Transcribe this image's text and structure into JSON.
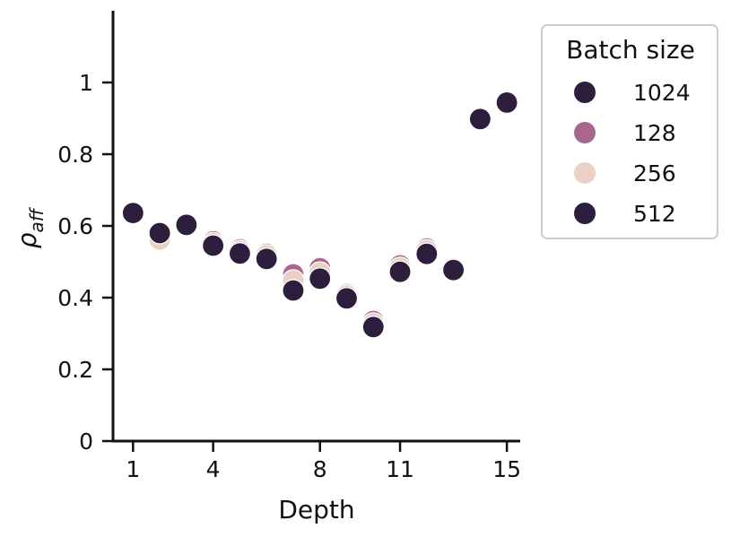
{
  "chart_data": {
    "type": "scatter",
    "xlabel": "Depth",
    "ylabel_base": "ρ",
    "ylabel_sub": "aff",
    "xlim": [
      0.25,
      15.5
    ],
    "ylim": [
      0,
      1.2
    ],
    "xticks": [
      1,
      4,
      8,
      11,
      15
    ],
    "yticks": [
      0,
      0.2,
      0.4,
      0.6,
      0.8,
      1
    ],
    "ytick_labels": [
      "0",
      "0.2",
      "0.4",
      "0.6",
      "0.8",
      "1"
    ],
    "legend": {
      "title": "Batch size",
      "placement": "top-right outside",
      "entries": [
        "1024",
        "128",
        "256",
        "512"
      ]
    },
    "series": [
      {
        "name": "1024",
        "color": "#2d1e3e",
        "x": [
          1,
          2,
          3,
          4,
          5,
          6,
          7,
          8,
          9,
          10,
          11,
          12,
          13,
          14,
          15
        ],
        "y": [
          0.635,
          0.575,
          0.602,
          0.548,
          0.527,
          0.513,
          0.43,
          0.46,
          0.402,
          0.322,
          0.476,
          0.527,
          0.48,
          0.897,
          0.943
        ]
      },
      {
        "name": "128",
        "color": "#a7678f",
        "x": [
          1,
          2,
          3,
          4,
          5,
          6,
          7,
          8,
          9,
          10,
          11,
          12,
          13,
          14,
          15
        ],
        "y": [
          0.633,
          0.568,
          0.6,
          0.557,
          0.535,
          0.522,
          0.465,
          0.482,
          0.41,
          0.335,
          0.49,
          0.537,
          0.482,
          0.895,
          0.94
        ]
      },
      {
        "name": "256",
        "color": "#ebd0c6",
        "x": [
          1,
          2,
          3,
          4,
          5,
          6,
          7,
          8,
          9,
          10,
          11,
          12,
          13,
          14,
          15
        ],
        "y": [
          0.635,
          0.562,
          0.601,
          0.552,
          0.53,
          0.518,
          0.448,
          0.47,
          0.406,
          0.328,
          0.483,
          0.532,
          0.481,
          0.896,
          0.941
        ]
      },
      {
        "name": "512",
        "color": "#2d1e3e",
        "x": [
          1,
          2,
          3,
          4,
          5,
          6,
          7,
          8,
          9,
          10,
          11,
          12,
          13,
          14,
          15
        ],
        "y": [
          0.636,
          0.58,
          0.603,
          0.545,
          0.523,
          0.508,
          0.42,
          0.453,
          0.398,
          0.318,
          0.472,
          0.522,
          0.477,
          0.898,
          0.944
        ]
      }
    ]
  }
}
